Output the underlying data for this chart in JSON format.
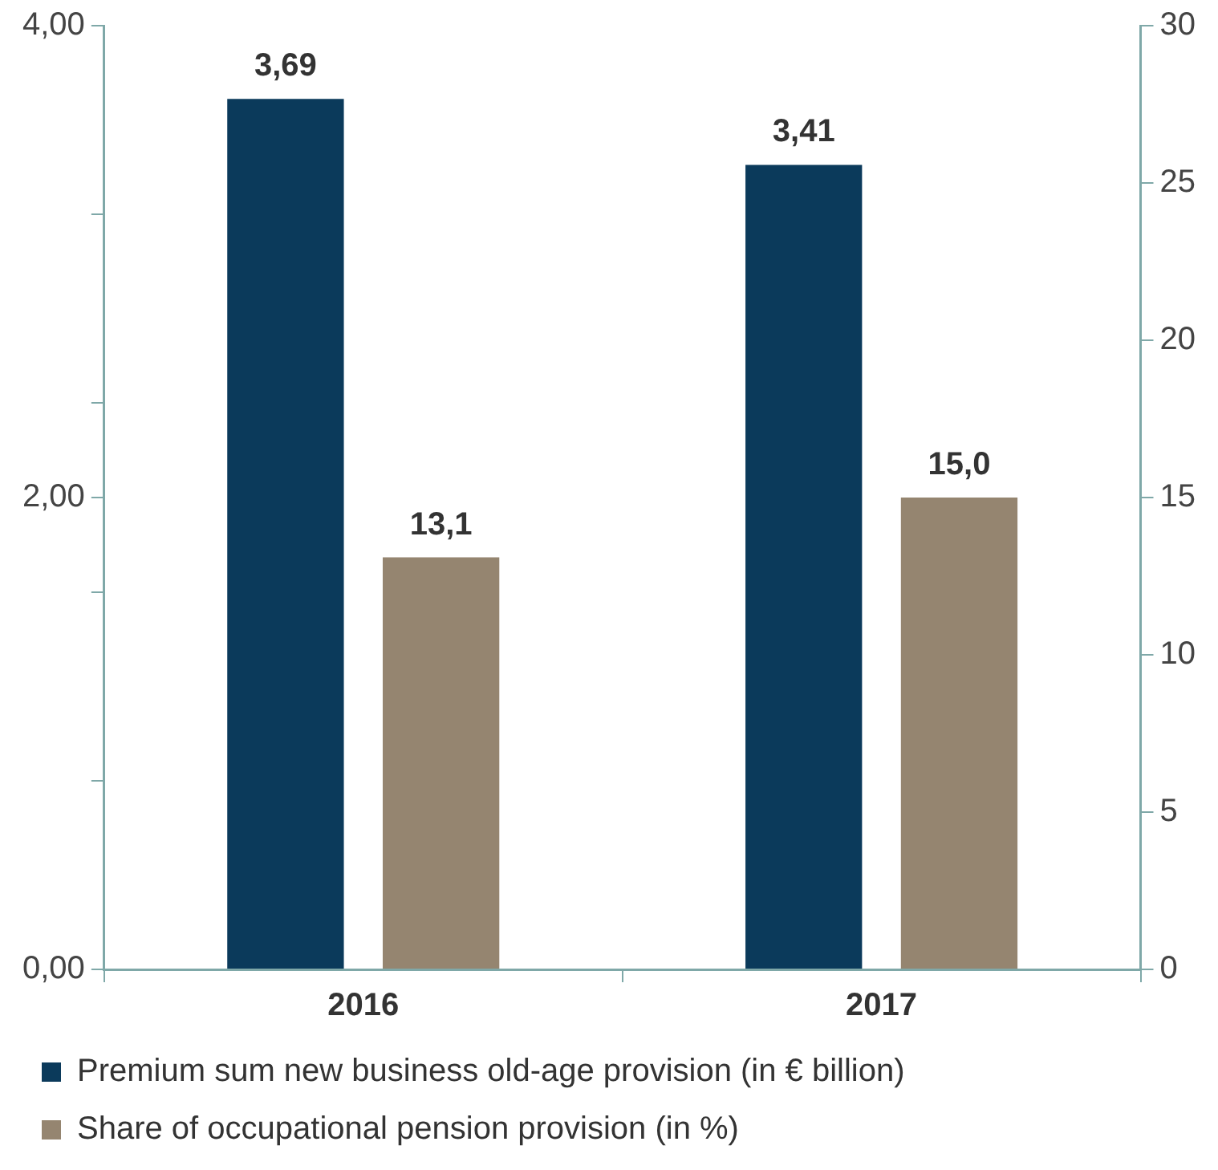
{
  "chart_data": {
    "type": "bar",
    "categories": [
      "2016",
      "2017"
    ],
    "series": [
      {
        "name": "Premium sum new business old-age provision (in € billion)",
        "color": "#0b3a5b",
        "values": [
          3.69,
          3.41
        ],
        "value_labels": [
          "3,69",
          "3,41"
        ]
      },
      {
        "name": "Share of occupational pension provision (in %)",
        "color": "#958570",
        "values": [
          13.1,
          15.0
        ],
        "value_labels": [
          "13,1",
          "15,0"
        ],
        "axis": "y2"
      }
    ],
    "ylim": [
      0,
      4
    ],
    "yticks": [
      {
        "value": 0,
        "label": "0,00"
      },
      {
        "value": 0.8,
        "label": null
      },
      {
        "value": 1.6,
        "label": null
      },
      {
        "value": 2,
        "label": "2,00"
      },
      {
        "value": 2.4,
        "label": null
      },
      {
        "value": 3.2,
        "label": null
      },
      {
        "value": 4,
        "label": "4,00"
      }
    ],
    "y2lim": [
      0,
      30
    ],
    "y2ticks": [
      0,
      5,
      10,
      15,
      20,
      25,
      30
    ],
    "grid": false,
    "legend": "bottom"
  }
}
